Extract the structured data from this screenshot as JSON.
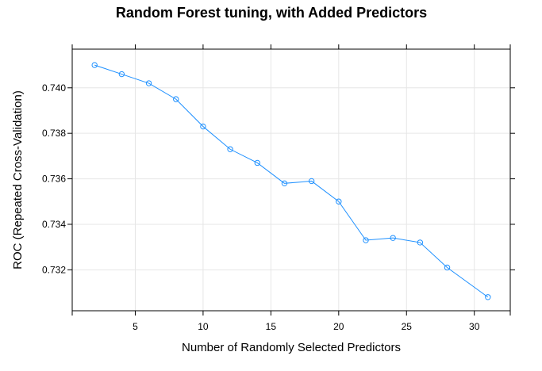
{
  "chart_data": {
    "type": "line",
    "title": "Random Forest tuning, with Added Predictors",
    "xlabel": "Number of Randomly Selected Predictors",
    "ylabel": "ROC (Repeated Cross-Validation)",
    "x_ticks": [
      5,
      10,
      15,
      20,
      25,
      30
    ],
    "y_ticks": [
      0.732,
      0.734,
      0.736,
      0.738,
      0.74
    ],
    "x_tick_labels": [
      "5",
      "10",
      "15",
      "20",
      "25",
      "30"
    ],
    "y_tick_labels": [
      "0.732",
      "0.734",
      "0.736",
      "0.738",
      "0.740"
    ],
    "xlim": [
      0.35,
      32.65
    ],
    "ylim": [
      0.7302,
      0.7417
    ],
    "grid": true,
    "series_color": "#1e90ff",
    "series": [
      {
        "x": [
          2,
          4,
          6,
          8,
          10,
          12,
          14,
          16,
          18,
          20,
          22,
          24,
          26,
          28,
          31
        ],
        "values": [
          0.741,
          0.7406,
          0.7402,
          0.7395,
          0.7383,
          0.7373,
          0.7367,
          0.7358,
          0.7359,
          0.735,
          0.7333,
          0.7334,
          0.7332,
          0.7321,
          0.7308
        ]
      }
    ]
  }
}
